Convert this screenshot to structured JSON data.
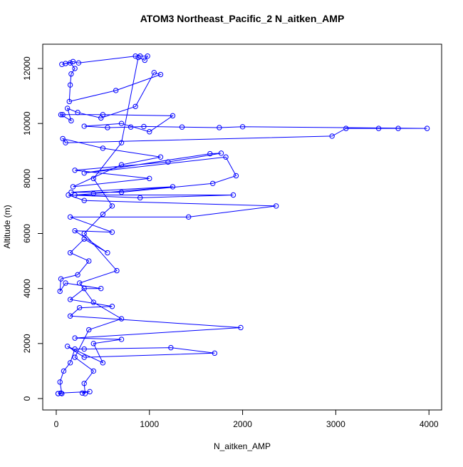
{
  "chart_data": {
    "type": "line",
    "title": "ATOM3 Northeast_Pacific_2 N_aitken_AMP",
    "x_label": "N_aitken_AMP",
    "y_label": "Altitude (m)",
    "xlim": [
      -145,
      4136
    ],
    "ylim": [
      -415,
      12882
    ],
    "xticks": [
      0,
      1000,
      2000,
      3000,
      4000
    ],
    "yticks": [
      0,
      2000,
      4000,
      6000,
      8000,
      10000,
      12000
    ],
    "series": [
      {
        "color": "#0000ff",
        "x": [
          20,
          60,
          40,
          80,
          150,
          200,
          300,
          1230,
          1700,
          300,
          120,
          500,
          400,
          700,
          200,
          1980,
          150,
          250,
          600,
          150,
          300,
          480,
          100,
          40,
          50,
          230,
          350,
          150,
          300,
          550,
          200,
          600,
          150,
          1420,
          2360,
          300,
          130,
          900,
          1900,
          200,
          400,
          1250,
          160,
          700,
          1680,
          1930,
          1820,
          300,
          1650,
          1770,
          1200,
          200,
          1000,
          180,
          700,
          1120,
          500,
          70,
          100,
          2960,
          3110,
          3460,
          3670,
          3980,
          2000,
          1750,
          1350,
          940,
          800,
          550,
          300,
          700,
          1000,
          1250,
          500,
          70,
          50,
          160,
          120,
          230,
          480,
          850,
          1050,
          1120,
          640,
          140,
          150,
          160,
          200,
          150,
          100,
          60,
          180,
          240,
          850,
          900,
          980,
          950,
          880,
          700,
          400,
          600,
          500,
          300,
          650,
          250,
          400,
          700,
          350,
          200,
          400,
          300,
          310,
          280,
          360,
          50,
          20
        ],
        "values": [
          180,
          180,
          600,
          1000,
          1300,
          1800,
          1800,
          1850,
          1650,
          1500,
          1900,
          1300,
          2000,
          2150,
          2200,
          2580,
          3000,
          3300,
          3350,
          3600,
          4000,
          4000,
          4200,
          3900,
          4350,
          4500,
          5000,
          5300,
          5800,
          5300,
          6100,
          6050,
          6600,
          6600,
          7000,
          7200,
          7400,
          7300,
          7400,
          7400,
          7450,
          7700,
          7500,
          7500,
          7820,
          8100,
          8780,
          8200,
          8900,
          8920,
          8600,
          8300,
          8000,
          7700,
          8500,
          8780,
          9100,
          9450,
          9300,
          9540,
          9820,
          9820,
          9820,
          9820,
          9880,
          9850,
          9870,
          9890,
          9870,
          9850,
          9900,
          10000,
          9700,
          10280,
          10320,
          10320,
          10320,
          10100,
          10550,
          10400,
          10200,
          10620,
          11850,
          11780,
          11200,
          10800,
          11400,
          11800,
          12000,
          12200,
          12180,
          12150,
          12250,
          12200,
          12450,
          12450,
          12450,
          12300,
          12400,
          9300,
          8000,
          7000,
          6700,
          6000,
          4650,
          4200,
          3500,
          2900,
          2500,
          1500,
          1000,
          550,
          180,
          200,
          250,
          200,
          180
        ]
      }
    ]
  }
}
